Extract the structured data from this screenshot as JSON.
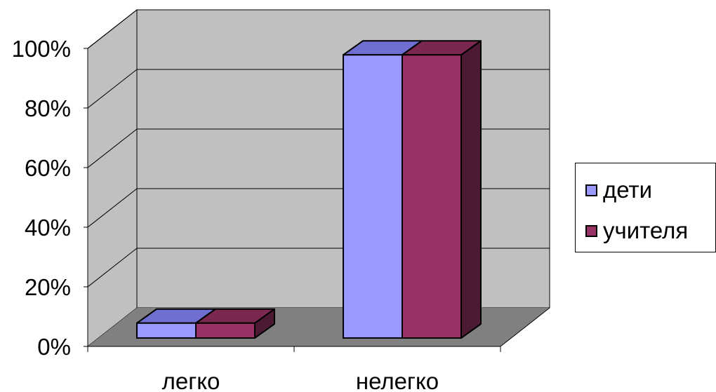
{
  "chart_data": {
    "type": "bar",
    "categories": [
      "легко",
      "нелегко"
    ],
    "series": [
      {
        "name": "дети",
        "values": [
          5,
          95
        ],
        "color": "#9999ff",
        "top_color": "#6f6fd2",
        "side_color": "#4d4da3"
      },
      {
        "name": "учителя",
        "values": [
          5,
          95
        ],
        "color": "#993366",
        "top_color": "#7a2850",
        "side_color": "#4d1a33"
      }
    ],
    "ylim": [
      0,
      100
    ],
    "yticks": [
      "0%",
      "20%",
      "40%",
      "60%",
      "80%",
      "100%"
    ],
    "grid": true,
    "legend": "right",
    "wall_color": "#c0c0c0",
    "floor_color": "#808080"
  }
}
